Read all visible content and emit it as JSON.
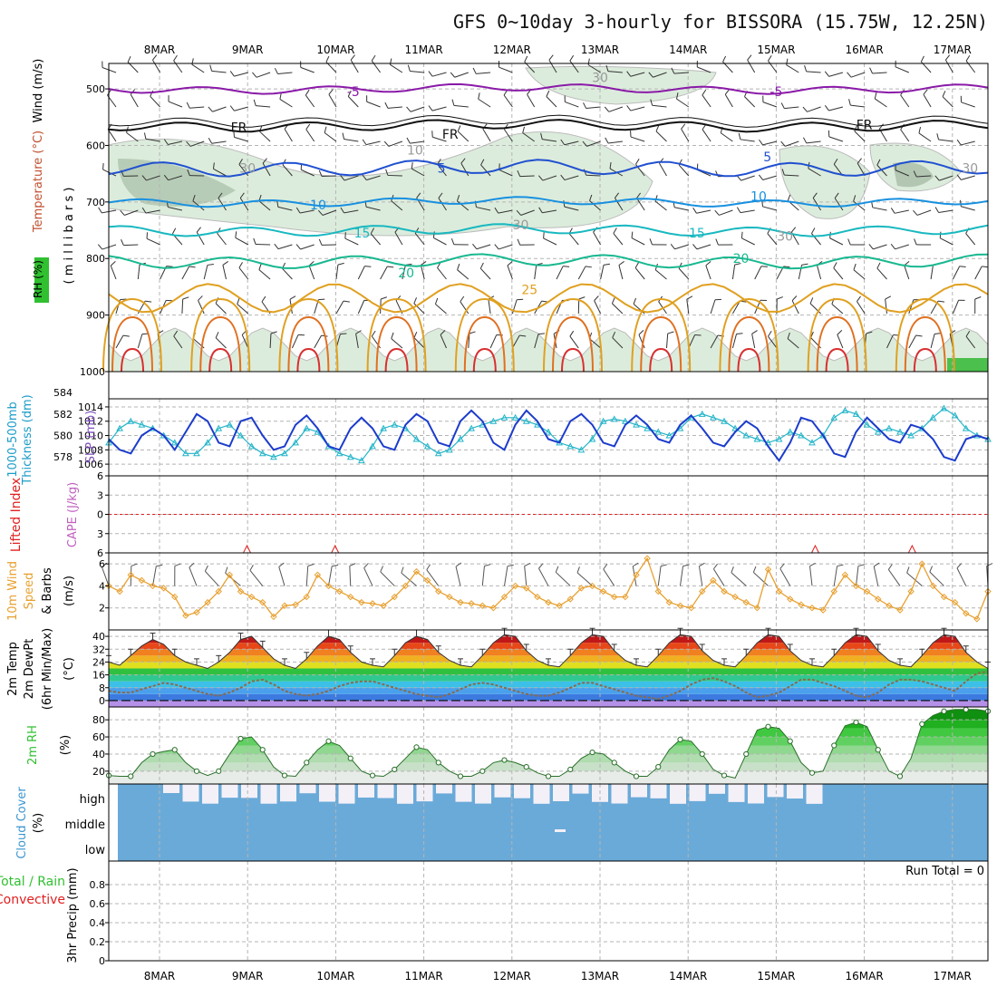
{
  "title": "GFS 0~10day 3-hourly for BISSORA (15.75W, 12.25N)",
  "dates": [
    "8MAR",
    "9MAR",
    "10MAR",
    "11MAR",
    "12MAR",
    "13MAR",
    "14MAR",
    "15MAR",
    "16MAR",
    "17MAR"
  ],
  "colors": {
    "grid": "#b4b4b4",
    "rh_fill": "#dcecdc",
    "rh_dark": "#9fb79f",
    "cloud": "#6aaad8",
    "cloud_clear": "#f4f0f8",
    "slp": "#1c3ccc",
    "thick": "#22b4c8",
    "wind10": "#e8a030",
    "rh2m": "#30c030",
    "li": "#e02020"
  },
  "chart_data": [
    {
      "id": "upper",
      "type": "contour",
      "ylabel_parts": {
        "rh": "RH (%)",
        "temp": "Temperature (°C)",
        "wind": "Wind (m/s)",
        "mb": "( m i l l i b a r s )"
      },
      "yticks": [
        500,
        600,
        700,
        800,
        900,
        1000
      ],
      "ylim": [
        455,
        1000
      ],
      "isotherms": [
        {
          "label": "-5",
          "color": "#8a1aa8",
          "base": 500,
          "amp": 6
        },
        {
          "label": "FR",
          "color": "#111111",
          "base": 565,
          "amp": 8
        },
        {
          "label": "5",
          "color": "#2050d0",
          "base": 640,
          "amp": 12
        },
        {
          "label": "10",
          "color": "#1890e0",
          "base": 700,
          "amp": 6
        },
        {
          "label": "15",
          "color": "#18b8c0",
          "base": 750,
          "amp": 8
        },
        {
          "label": "20",
          "color": "#18b890",
          "base": 805,
          "amp": 10
        },
        {
          "label": "25",
          "color": "#e0a020",
          "base": 870,
          "amp": 25
        }
      ],
      "contour_labels": [
        {
          "text": "-5",
          "x": 2.2,
          "p": 505,
          "color": "#8a1aa8"
        },
        {
          "text": "-5",
          "x": 7.0,
          "p": 505,
          "color": "#8a1aa8"
        },
        {
          "text": "FR",
          "x": 0.9,
          "p": 568,
          "color": "#111111"
        },
        {
          "text": "FR",
          "x": 3.3,
          "p": 580,
          "color": "#111111"
        },
        {
          "text": "FR",
          "x": 8.0,
          "p": 563,
          "color": "#111111"
        },
        {
          "text": "5",
          "x": 3.2,
          "p": 640,
          "color": "#2050d0"
        },
        {
          "text": "5",
          "x": 6.9,
          "p": 620,
          "color": "#2050d0"
        },
        {
          "text": "10",
          "x": 1.8,
          "p": 705,
          "color": "#1890e0"
        },
        {
          "text": "10",
          "x": 6.8,
          "p": 690,
          "color": "#1890e0"
        },
        {
          "text": "15",
          "x": 2.3,
          "p": 755,
          "color": "#18b8c0"
        },
        {
          "text": "15",
          "x": 6.1,
          "p": 755,
          "color": "#18b8c0"
        },
        {
          "text": "20",
          "x": 2.8,
          "p": 825,
          "color": "#18b890"
        },
        {
          "text": "20",
          "x": 6.6,
          "p": 800,
          "color": "#18b890"
        },
        {
          "text": "25",
          "x": 4.2,
          "p": 855,
          "color": "#e0a020"
        },
        {
          "text": "30",
          "x": 5.0,
          "p": 480,
          "color": "#999999"
        },
        {
          "text": "10",
          "x": 2.9,
          "p": 608,
          "color": "#999999"
        },
        {
          "text": "30",
          "x": 1.0,
          "p": 640,
          "color": "#999999"
        },
        {
          "text": "30",
          "x": 4.1,
          "p": 740,
          "color": "#999999"
        },
        {
          "text": "30",
          "x": 7.1,
          "p": 760,
          "color": "#999999"
        },
        {
          "text": "30",
          "x": 9.2,
          "p": 640,
          "color": "#999999"
        }
      ]
    },
    {
      "id": "slp",
      "type": "line",
      "ylabel_left": "1000-500mb",
      "ylabel_left2": "Thickness (dm)",
      "ylabel_right": "SLP (mb)",
      "yticks_left": [
        578,
        580,
        582,
        584
      ],
      "yticks_right": [
        1006,
        1008,
        1010,
        1012,
        1014
      ],
      "ylim_right": [
        1005,
        1014.5
      ],
      "series": [
        {
          "name": "SLP",
          "values": [
            1009.5,
            1008,
            1007.5,
            1010,
            1011,
            1010,
            1008,
            1010.5,
            1013,
            1012,
            1009,
            1008.5,
            1012,
            1012.5,
            1010,
            1008,
            1008.5,
            1011.5,
            1012.8,
            1011,
            1008.5,
            1008,
            1011,
            1012.5,
            1011,
            1008.5,
            1008,
            1011.5,
            1013,
            1012,
            1009,
            1008.5,
            1012,
            1013.5,
            1012,
            1009,
            1008,
            1011.5,
            1013.5,
            1012,
            1009.5,
            1009,
            1012,
            1013,
            1011.5,
            1009,
            1008.5,
            1011.5,
            1012.8,
            1011.5,
            1009.5,
            1009,
            1011.5,
            1012.8,
            1011,
            1009,
            1008.5,
            1010.5,
            1012,
            1011,
            1008.5,
            1006.5,
            1009,
            1012.5,
            1012,
            1010,
            1007.5,
            1007,
            1010.5,
            1012.5,
            1011,
            1009.5,
            1009,
            1011.5,
            1011,
            1009.5,
            1007,
            1006.5,
            1009.5,
            1010,
            1009.5
          ]
        },
        {
          "name": "Thickness",
          "values": [
            1009,
            1011,
            1012,
            1011.5,
            1011,
            1010,
            1009,
            1007.5,
            1007.5,
            1009,
            1011,
            1011.5,
            1010,
            1008.5,
            1007.5,
            1007,
            1007.5,
            1009,
            1011,
            1010.5,
            1008.5,
            1007.5,
            1007,
            1006.5,
            1008.5,
            1011,
            1011.5,
            1011,
            1009.5,
            1008.5,
            1007.5,
            1008,
            1009.5,
            1011,
            1011.5,
            1012,
            1012.5,
            1012.5,
            1012,
            1011.5,
            1010.5,
            1009,
            1008.5,
            1008,
            1009.5,
            1012,
            1012.3,
            1012,
            1011.5,
            1011,
            1010.5,
            1010,
            1011,
            1012.5,
            1013,
            1012.5,
            1012,
            1011,
            1010,
            1009.5,
            1009,
            1009.5,
            1010.5,
            1010,
            1009,
            1010,
            1012.5,
            1013.5,
            1013,
            1011.5,
            1010.5,
            1011,
            1010.5,
            1010,
            1011,
            1012.5,
            1013.8,
            1012.8,
            1011,
            1010,
            1009.5
          ]
        }
      ]
    },
    {
      "id": "cape",
      "type": "line",
      "ylabel_left": "Lifted Index",
      "ylabel_right": "CAPE (J/kg)",
      "yticks": [
        "6",
        "3",
        "0",
        "3",
        "6"
      ],
      "ylim": [
        -6,
        6
      ],
      "li_spikes": [
        1.25,
        2.25,
        7.7,
        8.8
      ]
    },
    {
      "id": "wind10",
      "type": "line",
      "ylabel_a": "10m Wind",
      "ylabel_b": "Speed",
      "ylabel_c": "& Barbs",
      "unit": "(m/s)",
      "yticks": [
        2,
        4,
        6
      ],
      "ylim": [
        0,
        7
      ],
      "series": [
        {
          "name": "Speed",
          "values": [
            4,
            3.5,
            5,
            4.5,
            4,
            3.8,
            3,
            1.3,
            1.6,
            2.5,
            3.5,
            5,
            3.5,
            3,
            2.5,
            1.2,
            2.2,
            2.3,
            3,
            5,
            4,
            3.5,
            3,
            2.5,
            2.4,
            2.2,
            3,
            4,
            5.3,
            4.5,
            3.5,
            3,
            2.5,
            2.4,
            2.2,
            2,
            3,
            4,
            3.8,
            3,
            2.5,
            2.2,
            2.8,
            3.8,
            4,
            3.5,
            3,
            3,
            5,
            6.5,
            3.5,
            2.5,
            2.2,
            2,
            3.5,
            4.5,
            3.5,
            3,
            2.5,
            2,
            5.5,
            3.5,
            2.8,
            2.3,
            2,
            1.8,
            3.5,
            5,
            4,
            3.5,
            2.8,
            2.2,
            1.8,
            3.5,
            6,
            4,
            3,
            2.5,
            1.5,
            1,
            3.5
          ]
        }
      ]
    },
    {
      "id": "temp2m",
      "type": "area",
      "ylabel_a": "2m Temp",
      "ylabel_b": "2m DewPt",
      "ylabel_c": "(6hr Min/Max)",
      "unit": "(°C)",
      "yticks": [
        0,
        8,
        16,
        24,
        32,
        40
      ],
      "ylim": [
        -4,
        44
      ],
      "series": [
        {
          "name": "Temp",
          "values": [
            24,
            22,
            28,
            34,
            38,
            35,
            28,
            24,
            22,
            20,
            24,
            30,
            38,
            40,
            33,
            26,
            22,
            20,
            26,
            34,
            40,
            38,
            30,
            24,
            22,
            21,
            28,
            36,
            40,
            38,
            30,
            25,
            22,
            21,
            28,
            36,
            41,
            40,
            31,
            25,
            22,
            21,
            28,
            36,
            41,
            40,
            31,
            25,
            22,
            21,
            28,
            36,
            41,
            40,
            31,
            25,
            22,
            21,
            28,
            36,
            41,
            40,
            31,
            25,
            22,
            21,
            28,
            36,
            41,
            40,
            31,
            25,
            22,
            21,
            28,
            36,
            41,
            40,
            30,
            24,
            20
          ]
        },
        {
          "name": "DewPt",
          "values": [
            6,
            5,
            5,
            7,
            9,
            11,
            10,
            8,
            6,
            4,
            3,
            5,
            8,
            12,
            13,
            10,
            6,
            4,
            3,
            4,
            6,
            9,
            11,
            12,
            12,
            10,
            8,
            6,
            4,
            3,
            2,
            4,
            7,
            10,
            11,
            10,
            8,
            6,
            4,
            3,
            3,
            5,
            8,
            11,
            11,
            9,
            7,
            5,
            3,
            2,
            1,
            3,
            6,
            10,
            13,
            14,
            12,
            9,
            5,
            2,
            3,
            5,
            9,
            13,
            13,
            11,
            9,
            6,
            3,
            2,
            5,
            10,
            13,
            13,
            12,
            10,
            8,
            6,
            12,
            17,
            18
          ]
        }
      ]
    },
    {
      "id": "rh2m",
      "type": "area",
      "ylabel": "2m RH",
      "unit": "(%)",
      "yticks": [
        20,
        40,
        60,
        80
      ],
      "ylim": [
        5,
        95
      ],
      "series": [
        {
          "name": "RH",
          "values": [
            15,
            14,
            14,
            30,
            40,
            43,
            45,
            30,
            20,
            15,
            20,
            40,
            58,
            60,
            45,
            25,
            15,
            14,
            30,
            45,
            55,
            50,
            35,
            20,
            15,
            14,
            22,
            35,
            48,
            45,
            30,
            20,
            14,
            14,
            20,
            30,
            33,
            30,
            25,
            18,
            14,
            14,
            22,
            35,
            42,
            40,
            30,
            20,
            14,
            14,
            25,
            45,
            57,
            55,
            40,
            22,
            15,
            12,
            40,
            68,
            72,
            70,
            55,
            30,
            18,
            20,
            50,
            73,
            77,
            72,
            45,
            20,
            14,
            35,
            75,
            85,
            90,
            92,
            92,
            92,
            90
          ]
        }
      ]
    },
    {
      "id": "cloud",
      "type": "bar",
      "ylabel": "Cloud Cover",
      "unit": "(%)",
      "levels": [
        "high",
        "middle",
        "low"
      ]
    },
    {
      "id": "precip",
      "type": "bar",
      "ylabel_a": "3hr Precip (mm)",
      "ylabel_b": "Total / Rain",
      "ylabel_c": "Convective",
      "yticks": [
        0,
        0.2,
        0.4,
        0.6,
        0.8
      ],
      "ylim": [
        0,
        1
      ],
      "run_total": "Run Total = 0"
    }
  ]
}
